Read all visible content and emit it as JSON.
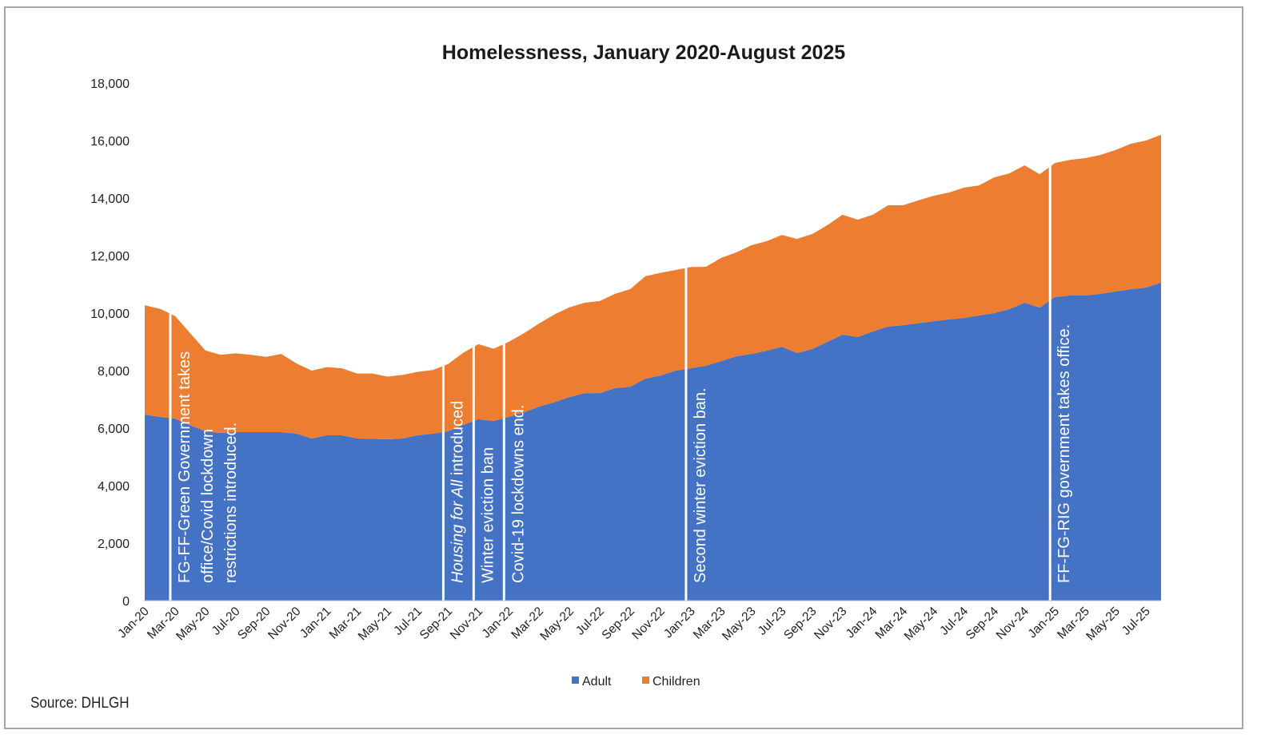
{
  "chart_data": {
    "type": "area",
    "stacked": true,
    "title": "Homelessness, January 2020-August 2025",
    "xlabel": "",
    "ylabel": "",
    "ylim": [
      0,
      18000
    ],
    "yticks": [
      "0",
      "2,000",
      "4,000",
      "6,000",
      "8,000",
      "10,000",
      "12,000",
      "14,000",
      "16,000",
      "18,000"
    ],
    "ytick_values": [
      0,
      2000,
      4000,
      6000,
      8000,
      10000,
      12000,
      14000,
      16000,
      18000
    ],
    "grid": false,
    "legend_position": "bottom",
    "x": [
      "Jan-20",
      "Feb-20",
      "Mar-20",
      "Apr-20",
      "May-20",
      "Jun-20",
      "Jul-20",
      "Aug-20",
      "Sep-20",
      "Oct-20",
      "Nov-20",
      "Dec-20",
      "Jan-21",
      "Feb-21",
      "Mar-21",
      "Apr-21",
      "May-21",
      "Jun-21",
      "Jul-21",
      "Aug-21",
      "Sep-21",
      "Oct-21",
      "Nov-21",
      "Dec-21",
      "Jan-22",
      "Feb-22",
      "Mar-22",
      "Apr-22",
      "May-22",
      "Jun-22",
      "Jul-22",
      "Aug-22",
      "Sep-22",
      "Oct-22",
      "Nov-22",
      "Dec-22",
      "Jan-23",
      "Feb-23",
      "Mar-23",
      "Apr-23",
      "May-23",
      "Jun-23",
      "Jul-23",
      "Aug-23",
      "Sep-23",
      "Oct-23",
      "Nov-23",
      "Dec-23",
      "Jan-24",
      "Feb-24",
      "Mar-24",
      "Apr-24",
      "May-24",
      "Jun-24",
      "Jul-24",
      "Aug-24",
      "Sep-24",
      "Oct-24",
      "Nov-24",
      "Dec-24",
      "Jan-25",
      "Feb-25",
      "Mar-25",
      "Apr-25",
      "May-25",
      "Jun-25",
      "Jul-25",
      "Aug-25"
    ],
    "xtick_labels": [
      "Jan-20",
      "Mar-20",
      "May-20",
      "Jul-20",
      "Sep-20",
      "Nov-20",
      "Jan-21",
      "Mar-21",
      "May-21",
      "Jul-21",
      "Sep-21",
      "Nov-21",
      "Jan-22",
      "Mar-22",
      "May-22",
      "Jul-22",
      "Sep-22",
      "Nov-22",
      "Jan-23",
      "Mar-23",
      "May-23",
      "Jul-23",
      "Sep-23",
      "Nov-23",
      "Jan-24",
      "Mar-24",
      "May-24",
      "Jul-24",
      "Sep-24",
      "Nov-24",
      "Jan-25",
      "Mar-25",
      "May-25",
      "Jul-25"
    ],
    "series": [
      {
        "name": "Adult",
        "color": "#4472C4",
        "values": [
          6470,
          6390,
          6330,
          6100,
          5890,
          5830,
          5860,
          5860,
          5860,
          5860,
          5810,
          5640,
          5750,
          5750,
          5640,
          5630,
          5610,
          5640,
          5750,
          5810,
          5890,
          6110,
          6310,
          6250,
          6390,
          6550,
          6750,
          6900,
          7080,
          7220,
          7220,
          7390,
          7440,
          7720,
          7830,
          8000,
          8080,
          8170,
          8330,
          8500,
          8580,
          8690,
          8830,
          8610,
          8750,
          9000,
          9250,
          9170,
          9360,
          9530,
          9580,
          9650,
          9720,
          9780,
          9830,
          9920,
          10000,
          10140,
          10360,
          10190,
          10560,
          10610,
          10610,
          10670,
          10750,
          10830,
          10890,
          11060
        ]
      },
      {
        "name": "Children",
        "color": "#ED7D31",
        "values": [
          3800,
          3760,
          3570,
          3200,
          2810,
          2720,
          2740,
          2690,
          2620,
          2720,
          2440,
          2360,
          2370,
          2330,
          2260,
          2270,
          2180,
          2210,
          2210,
          2210,
          2340,
          2510,
          2610,
          2510,
          2610,
          2750,
          2890,
          3050,
          3120,
          3140,
          3200,
          3280,
          3390,
          3560,
          3570,
          3500,
          3520,
          3440,
          3590,
          3610,
          3780,
          3810,
          3890,
          3970,
          4000,
          4060,
          4170,
          4080,
          4060,
          4220,
          4170,
          4270,
          4360,
          4410,
          4530,
          4520,
          4720,
          4720,
          4780,
          4640,
          4660,
          4720,
          4780,
          4830,
          4920,
          5060,
          5110,
          5140
        ]
      }
    ],
    "annotations": [
      {
        "at": "Mar-20",
        "lines": [
          [
            {
              "text": "FG-FF-Green Government takes",
              "italic": false
            }
          ],
          [
            {
              "text": "office/Covid lockdown",
              "italic": false
            }
          ],
          [
            {
              "text": "restrictions introduced.",
              "italic": false
            }
          ]
        ]
      },
      {
        "at": "Sep-21",
        "lines": [
          [
            {
              "text": "Housing for All",
              "italic": true
            },
            {
              "text": " introduced",
              "italic": false
            }
          ]
        ]
      },
      {
        "at": "Nov-21",
        "lines": [
          [
            {
              "text": "Winter eviction ban",
              "italic": false
            }
          ]
        ]
      },
      {
        "at": "Jan-22",
        "lines": [
          [
            {
              "text": "Covid-19 lockdowns end.",
              "italic": false
            }
          ]
        ]
      },
      {
        "at": "Jan-23",
        "lines": [
          [
            {
              "text": "Second winter eviction ban.",
              "italic": false
            }
          ]
        ]
      },
      {
        "at": "Jan-25",
        "lines": [
          [
            {
              "text": "FF-FG-RIG government takes office.",
              "italic": false
            }
          ]
        ]
      }
    ]
  },
  "source": "Source: DHLGH"
}
